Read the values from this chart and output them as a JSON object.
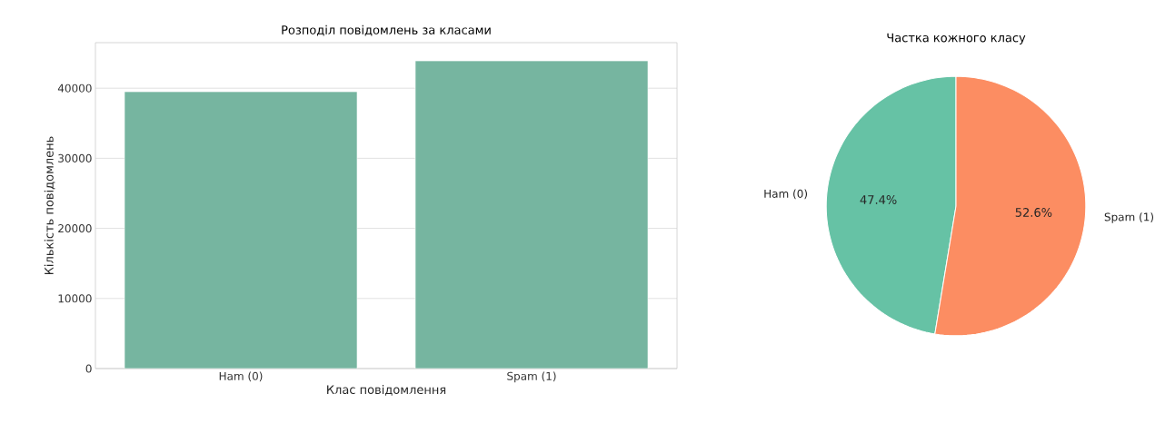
{
  "chart_data": [
    {
      "type": "bar",
      "title": "Розподіл повідомлень за класами",
      "xlabel": "Клас повідомлення",
      "ylabel": "Кількість повідомлень",
      "categories": [
        "Ham (0)",
        "Spam (1)"
      ],
      "values": [
        39500,
        43900
      ],
      "color": "#76b5a0",
      "ylim": [
        0,
        46500
      ],
      "yticks": [
        0,
        10000,
        20000,
        30000,
        40000
      ],
      "grid": "y"
    },
    {
      "type": "pie",
      "title": "Частка кожного класу",
      "categories": [
        "Ham (0)",
        "Spam (1)"
      ],
      "values": [
        47.4,
        52.6
      ],
      "colors": [
        "#66c2a5",
        "#fc8d62"
      ],
      "value_labels": [
        "47.4%",
        "52.6%"
      ]
    }
  ]
}
